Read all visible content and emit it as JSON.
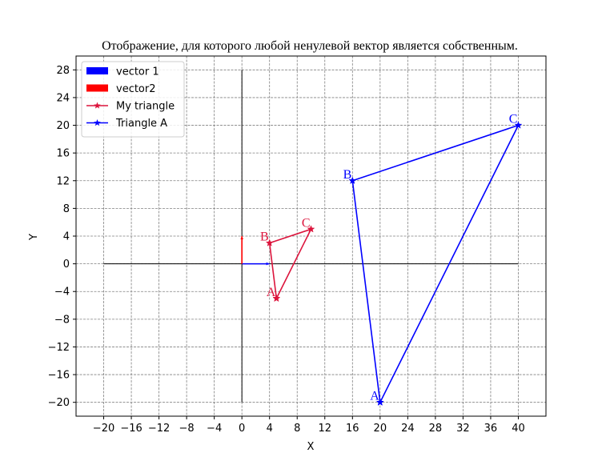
{
  "chart_data": {
    "type": "line",
    "title": "Отображение, для которого любой ненулевой вектор является собственным.",
    "xlabel": "X",
    "ylabel": "Y",
    "xlim": [
      -24,
      44
    ],
    "ylim": [
      -22,
      30
    ],
    "xticks": [
      -20,
      -16,
      -12,
      -8,
      -4,
      0,
      4,
      8,
      12,
      16,
      20,
      24,
      28,
      32,
      36,
      40
    ],
    "yticks": [
      -20,
      -16,
      -12,
      -8,
      -4,
      0,
      4,
      8,
      12,
      16,
      20,
      24,
      28
    ],
    "grid": true,
    "legend_position": "top-left",
    "axes_lines": {
      "horizontal": {
        "x": [
          -20,
          40
        ],
        "y": 0,
        "color": "#000000"
      },
      "vertical": {
        "x": 0,
        "y": [
          -20,
          28
        ],
        "color": "#000000"
      }
    },
    "vectors": [
      {
        "name": "vector 1",
        "origin": [
          0,
          0
        ],
        "vector": [
          4,
          0
        ],
        "color": "#0000ff"
      },
      {
        "name": "vector2",
        "origin": [
          0,
          0
        ],
        "vector": [
          0,
          4
        ],
        "color": "#ff0000"
      }
    ],
    "series": [
      {
        "name": "My triangle",
        "color": "#dc143c",
        "marker": "star",
        "points": [
          {
            "label": "A",
            "x": 5,
            "y": -5
          },
          {
            "label": "B",
            "x": 4,
            "y": 3
          },
          {
            "label": "C",
            "x": 10,
            "y": 5
          },
          {
            "label": "",
            "x": 5,
            "y": -5
          }
        ]
      },
      {
        "name": "Triangle A",
        "color": "#0000ff",
        "marker": "star",
        "points": [
          {
            "label": "A",
            "x": 20,
            "y": -20
          },
          {
            "label": "B",
            "x": 16,
            "y": 12
          },
          {
            "label": "C",
            "x": 40,
            "y": 20
          },
          {
            "label": "",
            "x": 20,
            "y": -20
          }
        ]
      }
    ]
  }
}
